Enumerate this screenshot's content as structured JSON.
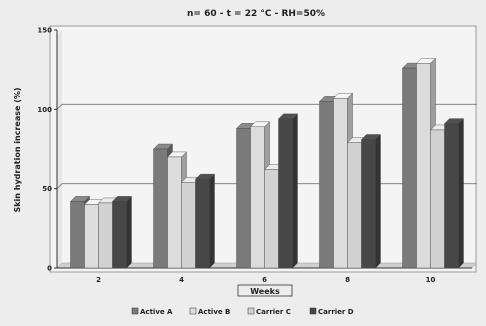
{
  "chart_data": {
    "type": "bar",
    "title": "n= 60  -  t = 22 °C  -  RH=50%",
    "xlabel": "Weeks",
    "ylabel": "Skin hydration increase (%)",
    "ylim": [
      0,
      150
    ],
    "yticks": [
      "0",
      "50",
      "100",
      "150"
    ],
    "categories": [
      "2",
      "4",
      "6",
      "8",
      "10"
    ],
    "series": [
      {
        "name": "Active A",
        "color": "#7a7a7a",
        "values": [
          42,
          75,
          88,
          105,
          126
        ]
      },
      {
        "name": "Active B",
        "color": "#dcdcdc",
        "values": [
          40,
          70,
          89,
          107,
          129
        ]
      },
      {
        "name": "Carrier C",
        "color": "#d2d2d2",
        "values": [
          41,
          54,
          62,
          79,
          87
        ]
      },
      {
        "name": "Carrier D",
        "color": "#474747",
        "values": [
          42,
          56,
          94,
          81,
          91
        ]
      }
    ],
    "grid": true,
    "gridlines_at": [
      50,
      100
    ],
    "legend_position": "bottom",
    "style": "3d-bar"
  }
}
